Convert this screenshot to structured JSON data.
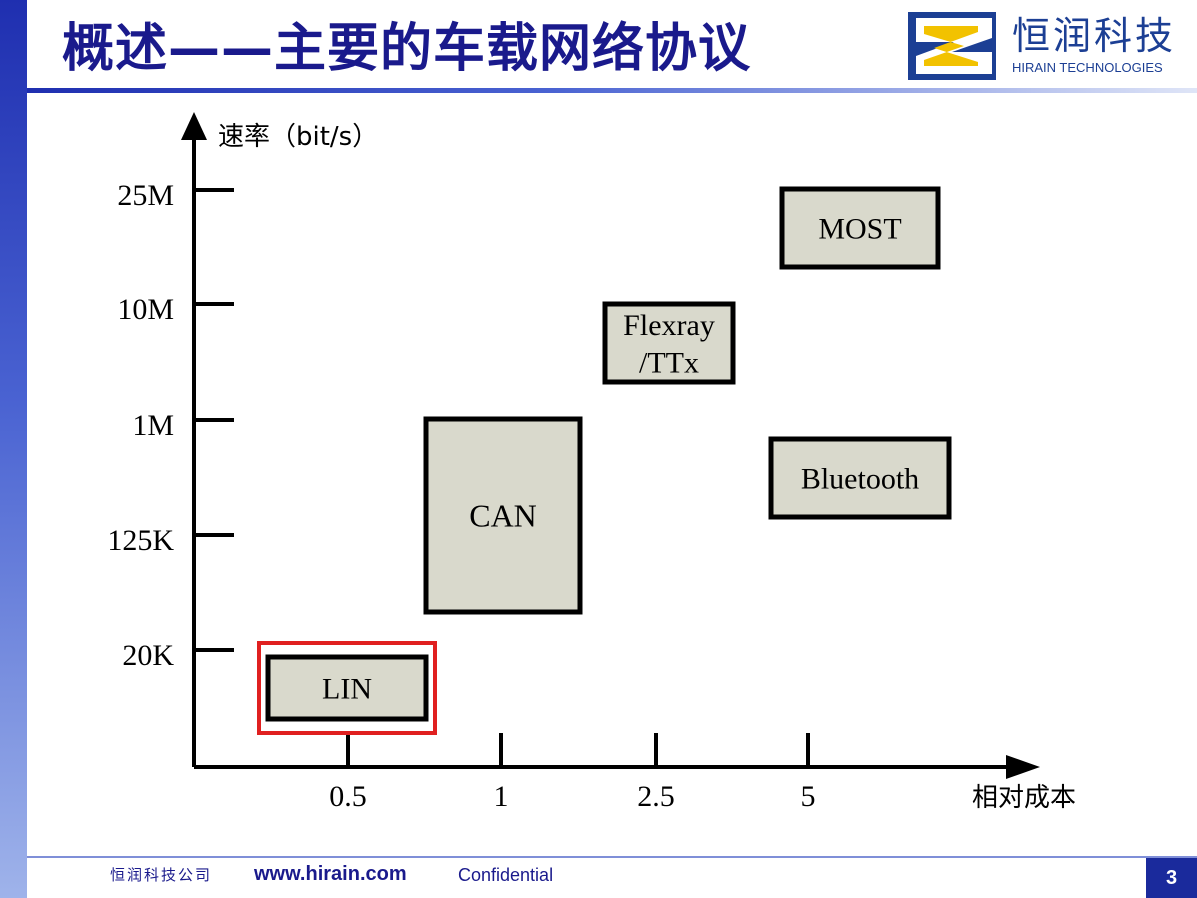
{
  "slide": {
    "title": "概述——主要的车载网络协议",
    "page_number": "3"
  },
  "logo": {
    "name_cn": "恒润科技",
    "name_en": "HIRAIN TECHNOLOGIES",
    "brand_color": "#1c3f94",
    "accent_color": "#f2c200"
  },
  "footer": {
    "company": "恒润科技公司",
    "url": "www.hirain.com",
    "confidentiality": "Confidential"
  },
  "chart_data": {
    "type": "diagram",
    "y_axis": {
      "label": "速率（bit/s）",
      "ticks": [
        "25M",
        "10M",
        "1M",
        "125K",
        "20K"
      ]
    },
    "x_axis": {
      "label": "相对成本",
      "ticks": [
        "0.5",
        "1",
        "2.5",
        "5"
      ]
    },
    "protocols": [
      {
        "label": "LIN",
        "highlighted": true
      },
      {
        "label": "CAN",
        "highlighted": false
      },
      {
        "label": "Flexray\n/TTx",
        "highlighted": false
      },
      {
        "label": "MOST",
        "highlighted": false
      },
      {
        "label": "Bluetooth",
        "highlighted": false
      }
    ],
    "box_fill": "#d9d9cc",
    "highlight_color": "#e02020"
  }
}
